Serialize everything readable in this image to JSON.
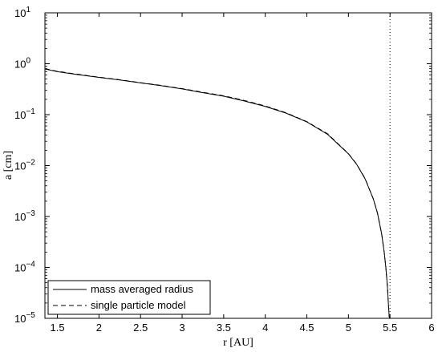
{
  "chart_data": {
    "type": "line",
    "xlabel": "r [AU]",
    "ylabel": "a [cm]",
    "xlim": [
      1.35,
      6
    ],
    "ylim": [
      1e-05,
      10
    ],
    "y_scale": "log",
    "x_ticks": [
      1.5,
      2,
      2.5,
      3,
      3.5,
      4,
      4.5,
      5,
      5.5,
      6
    ],
    "x_tick_labels": [
      "1.5",
      "2",
      "2.5",
      "3",
      "3.5",
      "4",
      "4.5",
      "5",
      "5.5",
      "6"
    ],
    "y_ticks": [
      {
        "value": 1e-05,
        "base": "10",
        "exp": "−5"
      },
      {
        "value": 0.0001,
        "base": "10",
        "exp": "−4"
      },
      {
        "value": 0.001,
        "base": "10",
        "exp": "−3"
      },
      {
        "value": 0.01,
        "base": "10",
        "exp": "−2"
      },
      {
        "value": 0.1,
        "base": "10",
        "exp": "−1"
      },
      {
        "value": 1,
        "base": "10",
        "exp": "0"
      },
      {
        "value": 10,
        "base": "10",
        "exp": "1"
      }
    ],
    "grid": false,
    "legend_position": "bottom-left",
    "vline": {
      "x": 5.5,
      "style": "dotted"
    },
    "series": [
      {
        "name": "mass averaged radius",
        "style": "solid",
        "color": "#000000",
        "x": [
          1.35,
          1.5,
          1.75,
          2.0,
          2.25,
          2.5,
          2.75,
          3.0,
          3.25,
          3.5,
          3.75,
          4.0,
          4.25,
          4.5,
          4.75,
          5.0,
          5.1,
          5.2,
          5.3,
          5.35,
          5.4,
          5.43,
          5.45,
          5.47,
          5.48,
          5.49,
          5.495
        ],
        "y": [
          0.79,
          0.7,
          0.61,
          0.54,
          0.48,
          0.42,
          0.37,
          0.32,
          0.27,
          0.23,
          0.185,
          0.145,
          0.107,
          0.072,
          0.041,
          0.017,
          0.0105,
          0.0055,
          0.0022,
          0.00115,
          0.00045,
          0.0002,
          0.0001,
          4e-05,
          2e-05,
          1.1e-05,
          1e-05
        ]
      },
      {
        "name": "single particle model",
        "style": "dashed",
        "color": "#000000",
        "x": [
          1.35,
          1.5,
          1.75,
          2.0,
          2.25,
          2.5,
          2.75,
          3.0,
          3.25,
          3.5,
          3.75,
          4.0,
          4.25,
          4.5,
          4.75,
          5.0,
          5.1,
          5.2,
          5.3,
          5.35,
          5.4,
          5.43,
          5.45,
          5.47,
          5.48,
          5.49,
          5.495
        ],
        "y": [
          0.8,
          0.71,
          0.62,
          0.545,
          0.485,
          0.425,
          0.375,
          0.325,
          0.275,
          0.235,
          0.19,
          0.148,
          0.109,
          0.073,
          0.042,
          0.0172,
          0.0106,
          0.0056,
          0.0022,
          0.00115,
          0.00045,
          0.0002,
          0.0001,
          4e-05,
          2e-05,
          1.1e-05,
          1e-05
        ]
      }
    ]
  }
}
